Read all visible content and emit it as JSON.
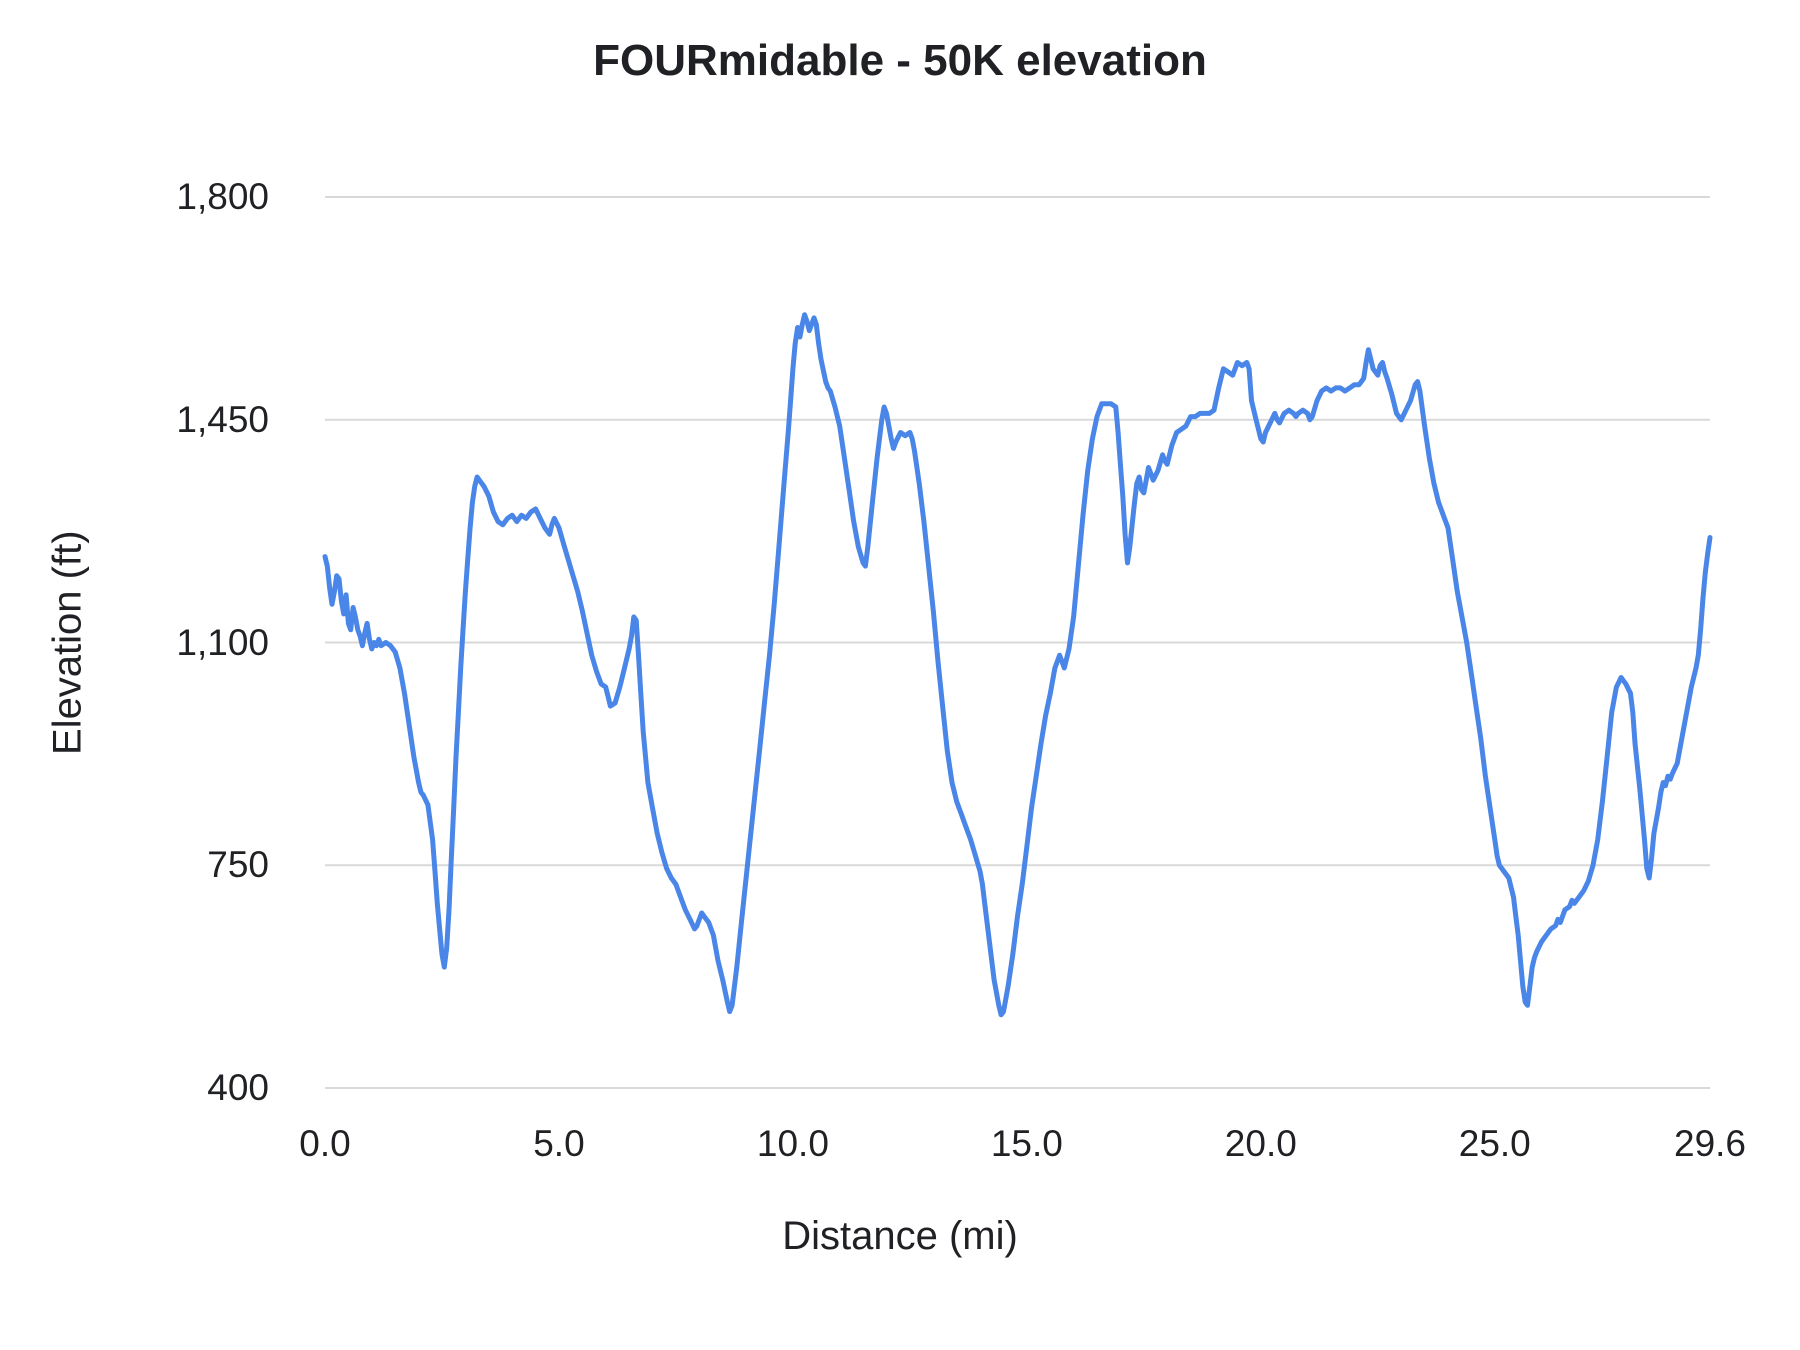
{
  "chart_data": {
    "type": "line",
    "title": "FOURmidable - 50K elevation",
    "xlabel": "Distance (mi)",
    "ylabel": "Elevation (ft)",
    "xlim": [
      0,
      29.6
    ],
    "ylim": [
      400,
      1800
    ],
    "x_ticks": [
      0,
      5,
      10,
      15,
      20,
      25,
      29.6
    ],
    "x_tick_labels": [
      "0.0",
      "5.0",
      "10.0",
      "15.0",
      "20.0",
      "25.0",
      "29.6"
    ],
    "y_ticks": [
      400,
      750,
      1100,
      1450,
      1800
    ],
    "y_tick_labels": [
      "400",
      "750",
      "1,100",
      "1,450",
      "1,800"
    ],
    "grid": true,
    "legend": "none",
    "line_color": "#4a86e8",
    "grid_color": "#d9d9d9",
    "line_width": 5,
    "series_name": "elevation",
    "points": [
      [
        0.0,
        1235
      ],
      [
        0.05,
        1220
      ],
      [
        0.1,
        1185
      ],
      [
        0.15,
        1160
      ],
      [
        0.2,
        1180
      ],
      [
        0.25,
        1205
      ],
      [
        0.3,
        1200
      ],
      [
        0.35,
        1165
      ],
      [
        0.4,
        1145
      ],
      [
        0.45,
        1175
      ],
      [
        0.5,
        1130
      ],
      [
        0.55,
        1120
      ],
      [
        0.6,
        1155
      ],
      [
        0.65,
        1140
      ],
      [
        0.7,
        1120
      ],
      [
        0.75,
        1110
      ],
      [
        0.8,
        1095
      ],
      [
        0.85,
        1115
      ],
      [
        0.9,
        1130
      ],
      [
        0.95,
        1105
      ],
      [
        1.0,
        1090
      ],
      [
        1.05,
        1100
      ],
      [
        1.1,
        1095
      ],
      [
        1.15,
        1105
      ],
      [
        1.2,
        1095
      ],
      [
        1.3,
        1100
      ],
      [
        1.4,
        1095
      ],
      [
        1.5,
        1085
      ],
      [
        1.6,
        1060
      ],
      [
        1.7,
        1020
      ],
      [
        1.8,
        970
      ],
      [
        1.9,
        920
      ],
      [
        2.0,
        880
      ],
      [
        2.05,
        865
      ],
      [
        2.1,
        860
      ],
      [
        2.2,
        845
      ],
      [
        2.3,
        790
      ],
      [
        2.35,
        740
      ],
      [
        2.4,
        690
      ],
      [
        2.45,
        650
      ],
      [
        2.5,
        610
      ],
      [
        2.55,
        590
      ],
      [
        2.6,
        620
      ],
      [
        2.65,
        680
      ],
      [
        2.7,
        760
      ],
      [
        2.75,
        840
      ],
      [
        2.8,
        920
      ],
      [
        2.85,
        990
      ],
      [
        2.9,
        1060
      ],
      [
        2.95,
        1120
      ],
      [
        3.0,
        1180
      ],
      [
        3.05,
        1230
      ],
      [
        3.1,
        1280
      ],
      [
        3.15,
        1320
      ],
      [
        3.2,
        1345
      ],
      [
        3.25,
        1360
      ],
      [
        3.3,
        1355
      ],
      [
        3.4,
        1345
      ],
      [
        3.5,
        1330
      ],
      [
        3.6,
        1305
      ],
      [
        3.7,
        1290
      ],
      [
        3.8,
        1285
      ],
      [
        3.9,
        1295
      ],
      [
        4.0,
        1300
      ],
      [
        4.1,
        1290
      ],
      [
        4.2,
        1300
      ],
      [
        4.3,
        1295
      ],
      [
        4.4,
        1305
      ],
      [
        4.5,
        1310
      ],
      [
        4.6,
        1295
      ],
      [
        4.7,
        1280
      ],
      [
        4.8,
        1270
      ],
      [
        4.85,
        1285
      ],
      [
        4.9,
        1295
      ],
      [
        5.0,
        1280
      ],
      [
        5.1,
        1255
      ],
      [
        5.2,
        1230
      ],
      [
        5.3,
        1205
      ],
      [
        5.4,
        1180
      ],
      [
        5.5,
        1150
      ],
      [
        5.6,
        1115
      ],
      [
        5.7,
        1080
      ],
      [
        5.8,
        1055
      ],
      [
        5.9,
        1035
      ],
      [
        6.0,
        1030
      ],
      [
        6.05,
        1015
      ],
      [
        6.1,
        1000
      ],
      [
        6.2,
        1005
      ],
      [
        6.3,
        1030
      ],
      [
        6.4,
        1060
      ],
      [
        6.5,
        1090
      ],
      [
        6.55,
        1110
      ],
      [
        6.6,
        1140
      ],
      [
        6.65,
        1135
      ],
      [
        6.7,
        1080
      ],
      [
        6.75,
        1020
      ],
      [
        6.8,
        960
      ],
      [
        6.9,
        880
      ],
      [
        7.0,
        840
      ],
      [
        7.1,
        800
      ],
      [
        7.2,
        770
      ],
      [
        7.3,
        745
      ],
      [
        7.4,
        730
      ],
      [
        7.5,
        720
      ],
      [
        7.6,
        700
      ],
      [
        7.7,
        680
      ],
      [
        7.8,
        665
      ],
      [
        7.9,
        650
      ],
      [
        7.95,
        655
      ],
      [
        8.0,
        665
      ],
      [
        8.05,
        675
      ],
      [
        8.1,
        670
      ],
      [
        8.2,
        660
      ],
      [
        8.3,
        640
      ],
      [
        8.4,
        600
      ],
      [
        8.5,
        570
      ],
      [
        8.6,
        535
      ],
      [
        8.65,
        520
      ],
      [
        8.7,
        530
      ],
      [
        8.8,
        590
      ],
      [
        8.9,
        660
      ],
      [
        9.0,
        730
      ],
      [
        9.1,
        800
      ],
      [
        9.2,
        870
      ],
      [
        9.3,
        940
      ],
      [
        9.4,
        1010
      ],
      [
        9.5,
        1080
      ],
      [
        9.6,
        1160
      ],
      [
        9.7,
        1250
      ],
      [
        9.8,
        1340
      ],
      [
        9.9,
        1430
      ],
      [
        9.95,
        1480
      ],
      [
        10.0,
        1530
      ],
      [
        10.05,
        1570
      ],
      [
        10.1,
        1595
      ],
      [
        10.15,
        1580
      ],
      [
        10.2,
        1600
      ],
      [
        10.25,
        1615
      ],
      [
        10.3,
        1605
      ],
      [
        10.35,
        1590
      ],
      [
        10.4,
        1600
      ],
      [
        10.45,
        1610
      ],
      [
        10.5,
        1600
      ],
      [
        10.55,
        1570
      ],
      [
        10.6,
        1545
      ],
      [
        10.7,
        1510
      ],
      [
        10.75,
        1500
      ],
      [
        10.8,
        1495
      ],
      [
        10.9,
        1470
      ],
      [
        11.0,
        1440
      ],
      [
        11.1,
        1390
      ],
      [
        11.2,
        1340
      ],
      [
        11.3,
        1290
      ],
      [
        11.4,
        1250
      ],
      [
        11.5,
        1225
      ],
      [
        11.55,
        1220
      ],
      [
        11.6,
        1250
      ],
      [
        11.7,
        1320
      ],
      [
        11.8,
        1390
      ],
      [
        11.9,
        1450
      ],
      [
        11.95,
        1470
      ],
      [
        12.0,
        1460
      ],
      [
        12.1,
        1420
      ],
      [
        12.15,
        1405
      ],
      [
        12.2,
        1415
      ],
      [
        12.3,
        1430
      ],
      [
        12.4,
        1425
      ],
      [
        12.5,
        1430
      ],
      [
        12.55,
        1420
      ],
      [
        12.6,
        1400
      ],
      [
        12.7,
        1350
      ],
      [
        12.8,
        1290
      ],
      [
        12.9,
        1220
      ],
      [
        13.0,
        1150
      ],
      [
        13.1,
        1070
      ],
      [
        13.2,
        1000
      ],
      [
        13.3,
        930
      ],
      [
        13.4,
        880
      ],
      [
        13.5,
        850
      ],
      [
        13.6,
        830
      ],
      [
        13.7,
        810
      ],
      [
        13.8,
        790
      ],
      [
        13.9,
        765
      ],
      [
        14.0,
        740
      ],
      [
        14.05,
        720
      ],
      [
        14.1,
        690
      ],
      [
        14.2,
        630
      ],
      [
        14.3,
        570
      ],
      [
        14.4,
        530
      ],
      [
        14.45,
        515
      ],
      [
        14.5,
        520
      ],
      [
        14.6,
        560
      ],
      [
        14.7,
        610
      ],
      [
        14.8,
        670
      ],
      [
        14.9,
        720
      ],
      [
        15.0,
        780
      ],
      [
        15.1,
        840
      ],
      [
        15.2,
        890
      ],
      [
        15.3,
        940
      ],
      [
        15.4,
        985
      ],
      [
        15.5,
        1020
      ],
      [
        15.6,
        1060
      ],
      [
        15.7,
        1080
      ],
      [
        15.75,
        1070
      ],
      [
        15.8,
        1060
      ],
      [
        15.9,
        1090
      ],
      [
        16.0,
        1140
      ],
      [
        16.1,
        1220
      ],
      [
        16.2,
        1300
      ],
      [
        16.3,
        1370
      ],
      [
        16.4,
        1420
      ],
      [
        16.5,
        1455
      ],
      [
        16.6,
        1475
      ],
      [
        16.7,
        1475
      ],
      [
        16.8,
        1475
      ],
      [
        16.9,
        1470
      ],
      [
        16.95,
        1430
      ],
      [
        17.0,
        1380
      ],
      [
        17.05,
        1330
      ],
      [
        17.1,
        1270
      ],
      [
        17.15,
        1225
      ],
      [
        17.2,
        1250
      ],
      [
        17.3,
        1320
      ],
      [
        17.35,
        1350
      ],
      [
        17.4,
        1360
      ],
      [
        17.45,
        1340
      ],
      [
        17.5,
        1335
      ],
      [
        17.55,
        1355
      ],
      [
        17.6,
        1375
      ],
      [
        17.65,
        1365
      ],
      [
        17.7,
        1355
      ],
      [
        17.8,
        1370
      ],
      [
        17.9,
        1395
      ],
      [
        17.95,
        1385
      ],
      [
        18.0,
        1380
      ],
      [
        18.1,
        1410
      ],
      [
        18.2,
        1430
      ],
      [
        18.3,
        1435
      ],
      [
        18.4,
        1440
      ],
      [
        18.5,
        1455
      ],
      [
        18.6,
        1455
      ],
      [
        18.7,
        1460
      ],
      [
        18.8,
        1460
      ],
      [
        18.9,
        1460
      ],
      [
        19.0,
        1465
      ],
      [
        19.1,
        1500
      ],
      [
        19.2,
        1530
      ],
      [
        19.3,
        1525
      ],
      [
        19.4,
        1520
      ],
      [
        19.5,
        1540
      ],
      [
        19.6,
        1535
      ],
      [
        19.7,
        1540
      ],
      [
        19.75,
        1530
      ],
      [
        19.8,
        1480
      ],
      [
        19.9,
        1450
      ],
      [
        20.0,
        1420
      ],
      [
        20.05,
        1415
      ],
      [
        20.1,
        1430
      ],
      [
        20.2,
        1445
      ],
      [
        20.3,
        1460
      ],
      [
        20.35,
        1450
      ],
      [
        20.4,
        1445
      ],
      [
        20.5,
        1460
      ],
      [
        20.6,
        1465
      ],
      [
        20.7,
        1460
      ],
      [
        20.75,
        1455
      ],
      [
        20.8,
        1460
      ],
      [
        20.9,
        1465
      ],
      [
        21.0,
        1460
      ],
      [
        21.05,
        1450
      ],
      [
        21.1,
        1455
      ],
      [
        21.2,
        1480
      ],
      [
        21.3,
        1495
      ],
      [
        21.4,
        1500
      ],
      [
        21.5,
        1495
      ],
      [
        21.6,
        1500
      ],
      [
        21.7,
        1500
      ],
      [
        21.8,
        1495
      ],
      [
        21.9,
        1500
      ],
      [
        22.0,
        1505
      ],
      [
        22.1,
        1505
      ],
      [
        22.2,
        1515
      ],
      [
        22.25,
        1540
      ],
      [
        22.3,
        1560
      ],
      [
        22.35,
        1545
      ],
      [
        22.4,
        1530
      ],
      [
        22.5,
        1520
      ],
      [
        22.55,
        1535
      ],
      [
        22.6,
        1540
      ],
      [
        22.65,
        1525
      ],
      [
        22.7,
        1515
      ],
      [
        22.8,
        1490
      ],
      [
        22.9,
        1460
      ],
      [
        23.0,
        1450
      ],
      [
        23.1,
        1465
      ],
      [
        23.2,
        1480
      ],
      [
        23.3,
        1505
      ],
      [
        23.35,
        1510
      ],
      [
        23.4,
        1495
      ],
      [
        23.5,
        1440
      ],
      [
        23.6,
        1390
      ],
      [
        23.7,
        1350
      ],
      [
        23.8,
        1320
      ],
      [
        23.9,
        1300
      ],
      [
        24.0,
        1280
      ],
      [
        24.1,
        1230
      ],
      [
        24.2,
        1180
      ],
      [
        24.3,
        1140
      ],
      [
        24.4,
        1100
      ],
      [
        24.5,
        1050
      ],
      [
        24.6,
        1000
      ],
      [
        24.7,
        950
      ],
      [
        24.8,
        890
      ],
      [
        24.9,
        840
      ],
      [
        25.0,
        790
      ],
      [
        25.05,
        765
      ],
      [
        25.1,
        750
      ],
      [
        25.2,
        740
      ],
      [
        25.3,
        730
      ],
      [
        25.4,
        700
      ],
      [
        25.45,
        670
      ],
      [
        25.5,
        640
      ],
      [
        25.55,
        600
      ],
      [
        25.6,
        560
      ],
      [
        25.65,
        535
      ],
      [
        25.7,
        530
      ],
      [
        25.75,
        560
      ],
      [
        25.8,
        590
      ],
      [
        25.85,
        605
      ],
      [
        25.9,
        615
      ],
      [
        26.0,
        630
      ],
      [
        26.1,
        640
      ],
      [
        26.2,
        650
      ],
      [
        26.3,
        655
      ],
      [
        26.35,
        665
      ],
      [
        26.4,
        660
      ],
      [
        26.5,
        680
      ],
      [
        26.6,
        685
      ],
      [
        26.65,
        695
      ],
      [
        26.7,
        690
      ],
      [
        26.8,
        700
      ],
      [
        26.9,
        710
      ],
      [
        27.0,
        725
      ],
      [
        27.1,
        750
      ],
      [
        27.2,
        790
      ],
      [
        27.3,
        850
      ],
      [
        27.4,
        920
      ],
      [
        27.5,
        990
      ],
      [
        27.6,
        1030
      ],
      [
        27.7,
        1045
      ],
      [
        27.75,
        1040
      ],
      [
        27.8,
        1035
      ],
      [
        27.9,
        1020
      ],
      [
        27.95,
        990
      ],
      [
        28.0,
        940
      ],
      [
        28.1,
        870
      ],
      [
        28.2,
        790
      ],
      [
        28.25,
        745
      ],
      [
        28.3,
        730
      ],
      [
        28.35,
        760
      ],
      [
        28.4,
        800
      ],
      [
        28.5,
        840
      ],
      [
        28.55,
        865
      ],
      [
        28.6,
        880
      ],
      [
        28.65,
        875
      ],
      [
        28.7,
        890
      ],
      [
        28.75,
        885
      ],
      [
        28.8,
        895
      ],
      [
        28.9,
        910
      ],
      [
        29.0,
        950
      ],
      [
        29.1,
        990
      ],
      [
        29.2,
        1030
      ],
      [
        29.3,
        1060
      ],
      [
        29.35,
        1080
      ],
      [
        29.4,
        1120
      ],
      [
        29.45,
        1170
      ],
      [
        29.5,
        1210
      ],
      [
        29.55,
        1240
      ],
      [
        29.6,
        1265
      ]
    ]
  }
}
